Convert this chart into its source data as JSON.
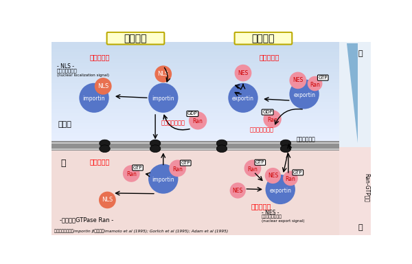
{
  "title_left": "核内輸送",
  "title_right": "核外輸送",
  "cyto_color_dark": "#7ba7c9",
  "cyto_color_mid": "#a4c0d8",
  "cyto_color_light": "#ccdae8",
  "nucleus_color": "#f2dcd8",
  "bg_color": "#ffffff",
  "importin_color": "#5575c8",
  "exportin_color": "#5575c8",
  "nls_color": "#e87050",
  "nes_color": "#f090a0",
  "ran_color": "#f090a0",
  "red_text": "#ff0000",
  "title_box_color": "#ffffcc",
  "title_box_border": "#bbaa00",
  "cytoplasm_label": "細胞質",
  "nucleus_label": "核",
  "npc_label": "核膜孔複合体",
  "recycling_label_left": "リサイクリング",
  "recycling_label_right": "リサイクリング",
  "substrate_recog_label": "基質の認識",
  "substrate_release_label": "基質の解離",
  "nls_signal_label1": "- NLS -",
  "nls_signal_label2": "核局在シグナル",
  "nls_signal_label3": "(nuclear localization signal)",
  "nes_signal_label1": "- NES -",
  "nes_signal_label2": "核外移行シグナル",
  "nes_signal_label3": "(nuclear export signal)",
  "low_mol_label": "-低分子量GTPase Ran -",
  "side_label_top": "低",
  "side_label_bottom": "高",
  "side_label_mid": "Ran-GTP濃度",
  "citation": "最初の運搬体分子importin βの発見；Imamoto et al (1995); Gorlich et al (1995); Adam et al (1995)"
}
